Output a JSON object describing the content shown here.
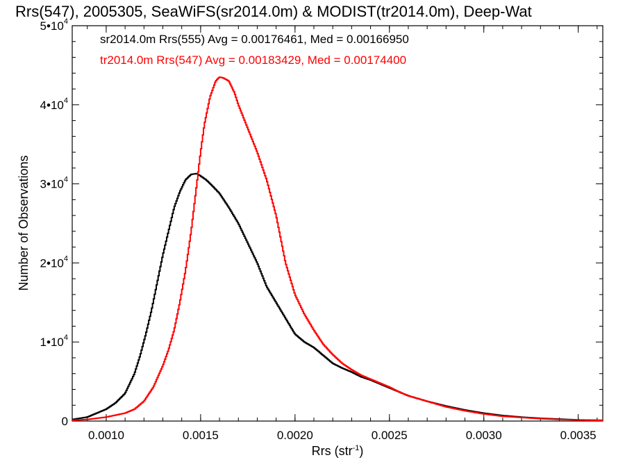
{
  "chart_data": {
    "type": "line",
    "title": "Rrs(547), 2005305, SeaWiFS(sr2014.0m) & MODIST(tr2014.0m), Deep-Wat",
    "xlabel": "Rrs (str",
    "xlabel_sup": "-1",
    "xlabel_suffix": ")",
    "ylabel": "Number of Observations",
    "xlim": [
      0.00082,
      0.00363
    ],
    "ylim": [
      0,
      50000
    ],
    "xticks": [
      {
        "value": 0.001,
        "label": "0.0010"
      },
      {
        "value": 0.0015,
        "label": "0.0015"
      },
      {
        "value": 0.002,
        "label": "0.0020"
      },
      {
        "value": 0.0025,
        "label": "0.0025"
      },
      {
        "value": 0.003,
        "label": "0.0030"
      },
      {
        "value": 0.0035,
        "label": "0.0035"
      }
    ],
    "yticks": [
      {
        "value": 0,
        "label": "0",
        "exp": ""
      },
      {
        "value": 10000,
        "label": "1•10",
        "exp": "4"
      },
      {
        "value": 20000,
        "label": "2•10",
        "exp": "4"
      },
      {
        "value": 30000,
        "label": "3•10",
        "exp": "4"
      },
      {
        "value": 40000,
        "label": "4•10",
        "exp": "4"
      },
      {
        "value": 50000,
        "label": "5•10",
        "exp": "4"
      }
    ],
    "grid": false,
    "legend_position": "top-left",
    "series": [
      {
        "name": "sr2014.0m Rrs(555) Avg = 0.00176461, Med = 0.00166950",
        "color": "#000000",
        "x": [
          0.00082,
          0.0009,
          0.00095,
          0.001,
          0.00105,
          0.0011,
          0.00115,
          0.00118,
          0.00121,
          0.00124,
          0.00127,
          0.0013,
          0.00133,
          0.00136,
          0.00139,
          0.00142,
          0.00145,
          0.00148,
          0.0015,
          0.00153,
          0.00156,
          0.0016,
          0.00165,
          0.0017,
          0.00175,
          0.0018,
          0.00185,
          0.0019,
          0.00195,
          0.002,
          0.00205,
          0.0021,
          0.00215,
          0.0022,
          0.00225,
          0.0023,
          0.00235,
          0.0024,
          0.00245,
          0.0025,
          0.00255,
          0.0026,
          0.0027,
          0.0028,
          0.0029,
          0.003,
          0.0031,
          0.0032,
          0.0033,
          0.0034,
          0.0035,
          0.00363
        ],
        "y": [
          200,
          500,
          1000,
          1500,
          2300,
          3500,
          6000,
          8300,
          11000,
          14000,
          17500,
          21000,
          24000,
          27000,
          29000,
          30500,
          31200,
          31300,
          31000,
          30500,
          29800,
          28800,
          27000,
          25000,
          22500,
          20000,
          17000,
          15000,
          13000,
          11000,
          10000,
          9300,
          8300,
          7300,
          6700,
          6200,
          5600,
          5200,
          4700,
          4200,
          3700,
          3200,
          2500,
          1900,
          1400,
          1000,
          700,
          500,
          350,
          250,
          150,
          100
        ]
      },
      {
        "name": "tr2014.0m Rrs(547) Avg = 0.00183429, Med = 0.00174400",
        "color": "#ff0000",
        "x": [
          0.00082,
          0.0009,
          0.001,
          0.0011,
          0.00115,
          0.0012,
          0.00125,
          0.0013,
          0.00133,
          0.00136,
          0.00139,
          0.00142,
          0.00145,
          0.00148,
          0.0015,
          0.00152,
          0.00155,
          0.00158,
          0.0016,
          0.00162,
          0.00165,
          0.00168,
          0.0017,
          0.00175,
          0.0018,
          0.00185,
          0.0019,
          0.00195,
          0.002,
          0.00205,
          0.0021,
          0.00215,
          0.0022,
          0.00225,
          0.0023,
          0.00235,
          0.0024,
          0.00245,
          0.0025,
          0.00255,
          0.0026,
          0.0027,
          0.0028,
          0.0029,
          0.003,
          0.0031,
          0.0032,
          0.0033,
          0.0034,
          0.0035,
          0.00363
        ],
        "y": [
          100,
          200,
          500,
          1000,
          1500,
          2500,
          4300,
          7000,
          9000,
          11500,
          15000,
          19000,
          24000,
          30000,
          34000,
          37500,
          41000,
          43000,
          43500,
          43400,
          43000,
          41500,
          40000,
          37000,
          34000,
          30500,
          26000,
          20000,
          16000,
          13500,
          11500,
          9700,
          8400,
          7300,
          6500,
          5800,
          5300,
          4800,
          4300,
          3700,
          3200,
          2500,
          1800,
          1300,
          900,
          600,
          450,
          300,
          200,
          130,
          80
        ]
      }
    ]
  }
}
